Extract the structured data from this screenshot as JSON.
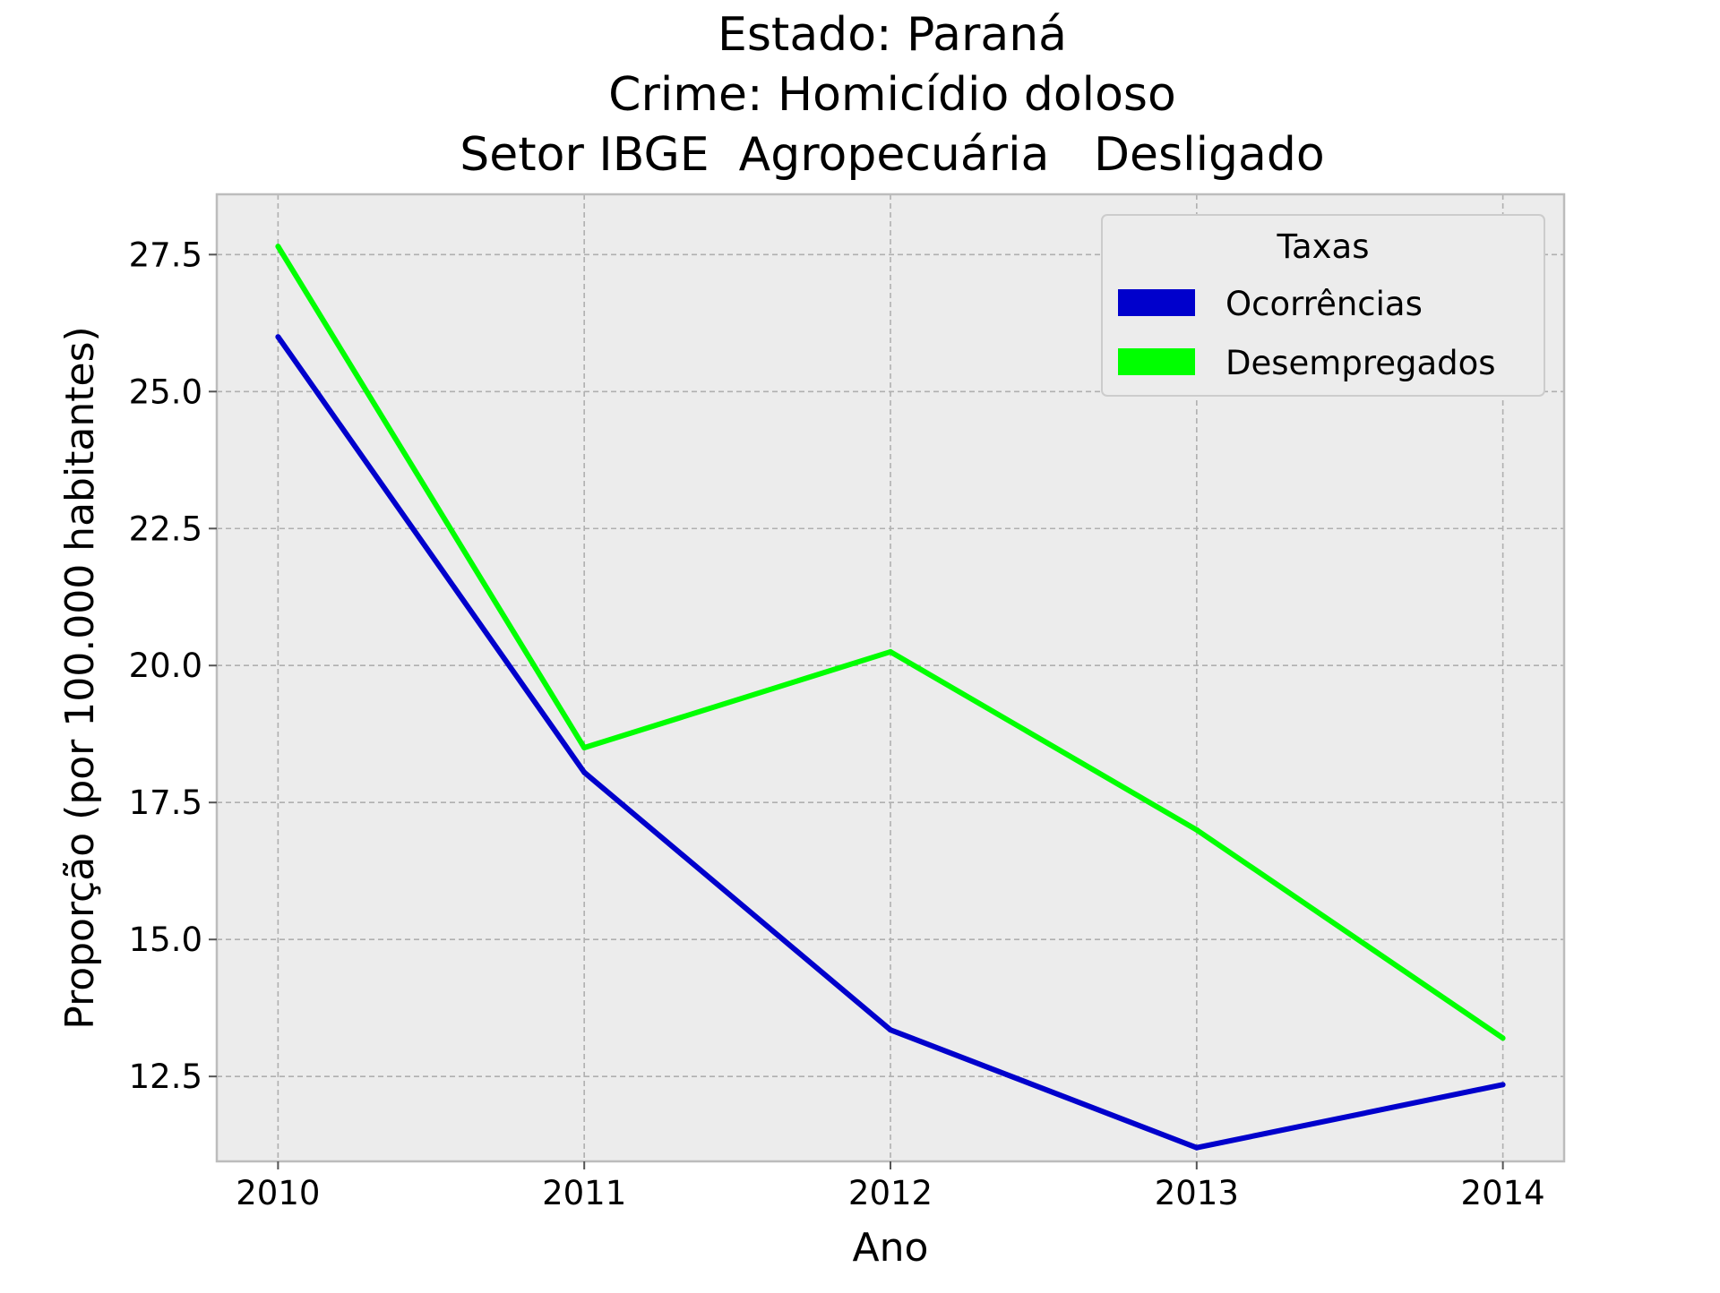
{
  "chart_data": {
    "type": "line",
    "title_lines": [
      "Estado: Paraná",
      "Crime: Homicídio doloso",
      "Setor IBGE  Agropecuária   Desligado"
    ],
    "xlabel": "Ano",
    "ylabel": "Proporção (por 100.000 habitantes)",
    "x": [
      2010,
      2011,
      2012,
      2013,
      2014
    ],
    "x_tick_labels": [
      "2010",
      "2011",
      "2012",
      "2013",
      "2014"
    ],
    "y_ticks": [
      12.5,
      15.0,
      17.5,
      20.0,
      22.5,
      25.0,
      27.5
    ],
    "y_tick_labels": [
      "12.5",
      "15.0",
      "17.5",
      "20.0",
      "22.5",
      "25.0",
      "27.5"
    ],
    "xlim": [
      2009.8,
      2014.2
    ],
    "ylim": [
      10.95,
      28.6
    ],
    "grid": true,
    "legend": {
      "title": "Taxas",
      "placement": "top-right"
    },
    "series": [
      {
        "name": "Ocorrências",
        "color": "#0000cc",
        "values": [
          26.0,
          18.05,
          13.35,
          11.2,
          12.35
        ]
      },
      {
        "name": "Desempregados",
        "color": "#00ff00",
        "values": [
          27.65,
          18.5,
          20.25,
          17.0,
          13.2
        ]
      }
    ]
  }
}
